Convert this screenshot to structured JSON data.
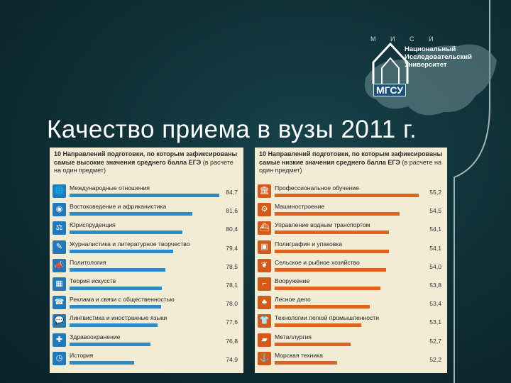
{
  "header": {
    "logo_letters": "М И С И",
    "university_line1": "Национальный",
    "university_line2": "Исследовательский",
    "university_line3": "Университет",
    "logo_abbr": "МГСУ"
  },
  "title": "Качество приема в вузы 2011 г.",
  "left_panel": {
    "title_bold": "10 Направлений подготовки, по которым зафиксированы самые высокие значения среднего балла ЕГЭ",
    "title_normal": "(в расчете на один предмет)",
    "accent": "#2d8ac9",
    "items": [
      {
        "icon": "globe-icon",
        "glyph": "🌐",
        "label": "Международные отношения",
        "value": "84,7",
        "num": 84.7
      },
      {
        "icon": "world-icon",
        "glyph": "◉",
        "label": "Востоковедение и африканистика",
        "value": "81,6",
        "num": 81.6
      },
      {
        "icon": "scales-icon",
        "glyph": "⚖",
        "label": "Юриспруденция",
        "value": "80,4",
        "num": 80.4
      },
      {
        "icon": "pen-icon",
        "glyph": "✎",
        "label": "Журналистика и литературное творчество",
        "value": "79,4",
        "num": 79.4
      },
      {
        "icon": "megaphone-icon",
        "glyph": "📣",
        "label": "Политология",
        "value": "78,5",
        "num": 78.5
      },
      {
        "icon": "film-icon",
        "glyph": "▦",
        "label": "Теория искусств",
        "value": "78,1",
        "num": 78.1
      },
      {
        "icon": "phone-icon",
        "glyph": "☎",
        "label": "Реклама и связи с общественностью",
        "value": "78,0",
        "num": 78.0
      },
      {
        "icon": "speech-icon",
        "glyph": "💬",
        "label": "Лингвистика и иностранные языки",
        "value": "77,6",
        "num": 77.6
      },
      {
        "icon": "cross-icon",
        "glyph": "✚",
        "label": "Здравоохранение",
        "value": "76,8",
        "num": 76.8
      },
      {
        "icon": "clock-icon",
        "glyph": "◷",
        "label": "История",
        "value": "74,9",
        "num": 74.9
      }
    ]
  },
  "right_panel": {
    "title_bold": "10 Направлений подготовки, по которым зафиксированы самые низкие значения среднего балла ЕГЭ",
    "title_normal": "(в расчете на один предмет)",
    "accent": "#e0631f",
    "items": [
      {
        "icon": "building-icon",
        "glyph": "🏛",
        "label": "Профессиональное обучение",
        "value": "55,2",
        "num": 55.2
      },
      {
        "icon": "gears-icon",
        "glyph": "⚙",
        "label": "Машиностроение",
        "value": "54,5",
        "num": 54.5
      },
      {
        "icon": "ship-icon",
        "glyph": "⛴",
        "label": "Управление водным транспортом",
        "value": "54,1",
        "num": 54.1
      },
      {
        "icon": "box-icon",
        "glyph": "▣",
        "label": "Полиграфия и упаковка",
        "value": "54,1",
        "num": 54.1
      },
      {
        "icon": "leaf-icon",
        "glyph": "❦",
        "label": "Сельское и рыбное хозяйство",
        "value": "54,0",
        "num": 54.0
      },
      {
        "icon": "gun-icon",
        "glyph": "⌐",
        "label": "Вооружение",
        "value": "53,8",
        "num": 53.8
      },
      {
        "icon": "tree-icon",
        "glyph": "♣",
        "label": "Лесное дело",
        "value": "53,4",
        "num": 53.4
      },
      {
        "icon": "shirt-icon",
        "glyph": "👕",
        "label": "Технологии легкой промышленности",
        "value": "53,1",
        "num": 53.1
      },
      {
        "icon": "ingot-icon",
        "glyph": "▰",
        "label": "Металлургия",
        "value": "52,7",
        "num": 52.7
      },
      {
        "icon": "anchor-icon",
        "glyph": "⚓",
        "label": "Морская техника",
        "value": "52,2",
        "num": 52.2
      }
    ]
  }
}
